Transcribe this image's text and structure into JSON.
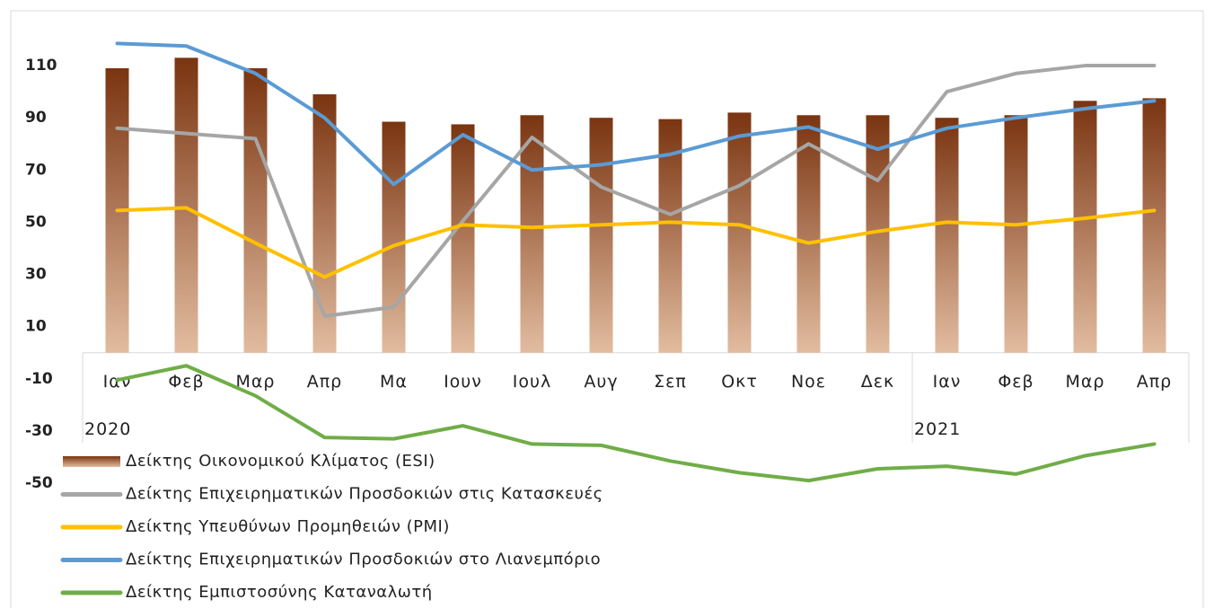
{
  "chart_data": {
    "type": "combo",
    "category_groups": [
      {
        "label": "2020",
        "categories": [
          "Ιαν",
          "Φεβ",
          "Μαρ",
          "Απρ",
          "Μα",
          "Ιουν",
          "Ιουλ",
          "Αυγ",
          "Σεπ",
          "Οκτ",
          "Νοε",
          "Δεκ"
        ]
      },
      {
        "label": "2021",
        "categories": [
          "Ιαν",
          "Φεβ",
          "Μαρ",
          "Απρ"
        ]
      }
    ],
    "series": [
      {
        "name": "Δείκτης Οικονομικού Κλίματος (ESI)",
        "type": "bar",
        "color": "#7a3410",
        "color_end": "#e2bca0",
        "values": [
          109,
          113,
          109,
          99,
          88.5,
          87.5,
          91,
          90,
          89.5,
          92,
          91,
          91,
          90,
          91,
          96.5,
          97.5
        ]
      },
      {
        "name": "Δείκτης Επιχειρηματικών Προσδοκιών στις Κατασκευές",
        "type": "line",
        "color": "#a6a6a6",
        "values": [
          86,
          84,
          82,
          14,
          17.5,
          50.5,
          82.5,
          63.5,
          53,
          64,
          80,
          66,
          100,
          107,
          110,
          110
        ]
      },
      {
        "name": "Δείκτης Υπευθύνων Προμηθειών (PMI)",
        "type": "line",
        "color": "#ffc000",
        "values": [
          54.5,
          55.5,
          42,
          29,
          41,
          49,
          48,
          49,
          50,
          49,
          42,
          46.5,
          50,
          49,
          51.5,
          54.5
        ]
      },
      {
        "name": "Δείκτης Επιχειρηματικών Προσδοκιών στο Λιανεμπόριο",
        "type": "line",
        "color": "#5b9bd5",
        "values": [
          118.5,
          117.5,
          107,
          90,
          64.5,
          83.5,
          70,
          72,
          76,
          83,
          86.5,
          78,
          86,
          90,
          93.5,
          96.5
        ]
      },
      {
        "name": "Δείκτης Εμπιστοσύνης Καταναλωτή",
        "type": "line",
        "color": "#70ad47",
        "values": [
          -10.5,
          -5,
          -16.5,
          -32.5,
          -33,
          -28,
          -35,
          -35.5,
          -41.5,
          -46,
          -49,
          -44.5,
          -43.5,
          -46.5,
          -39.5,
          -35
        ]
      }
    ],
    "ylim": [
      -50,
      120
    ],
    "yticks": [
      110,
      90,
      70,
      50,
      30,
      10,
      -10,
      -30,
      -50
    ],
    "legend": "bottom-left"
  }
}
